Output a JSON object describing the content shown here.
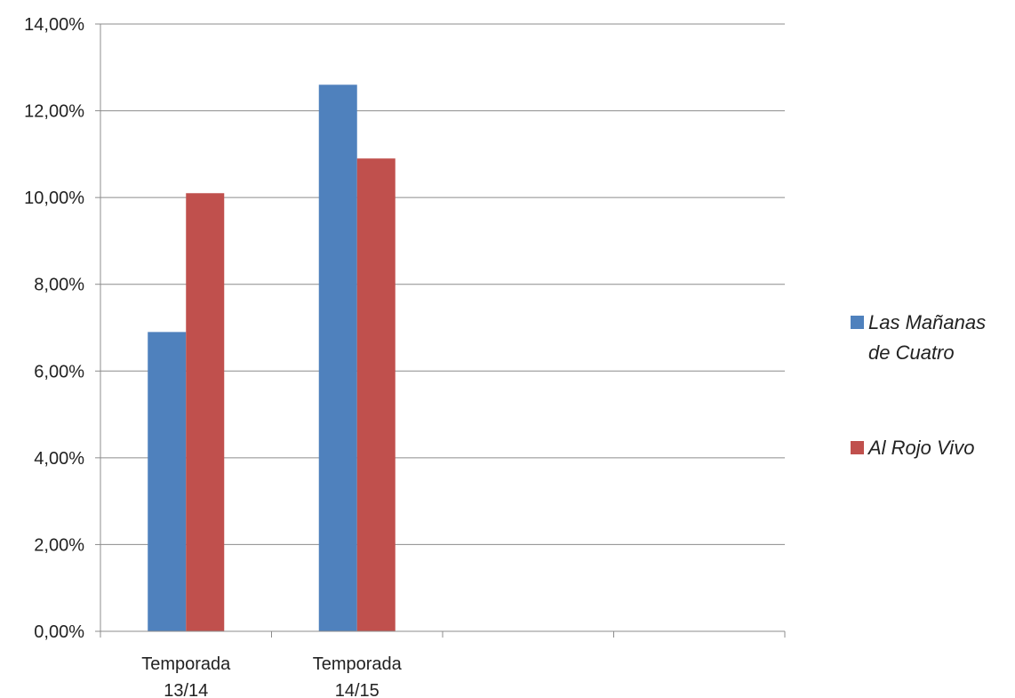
{
  "chart_data": {
    "type": "bar",
    "categories": [
      [
        "Temporada",
        "13/14"
      ],
      [
        "Temporada",
        "14/15"
      ],
      [
        "",
        ""
      ],
      [
        "",
        ""
      ]
    ],
    "series": [
      {
        "name": "Las Mañanas de Cuatro",
        "legend_lines": [
          "Las Mañanas",
          "de Cuatro"
        ],
        "color": "#4F81BD",
        "values": [
          6.9,
          12.6,
          null,
          null
        ]
      },
      {
        "name": "Al Rojo Vivo",
        "legend_lines": [
          "Al Rojo Vivo"
        ],
        "color": "#C0504D",
        "values": [
          10.1,
          10.9,
          null,
          null
        ]
      }
    ],
    "ylim": [
      0,
      14
    ],
    "yticks": [
      0,
      2,
      4,
      6,
      8,
      10,
      12,
      14
    ],
    "ytick_labels": [
      "0,00%",
      "2,00%",
      "4,00%",
      "6,00%",
      "8,00%",
      "10,00%",
      "12,00%",
      "14,00%"
    ],
    "grid": true,
    "legend_position": "right",
    "title": "",
    "xlabel": "",
    "ylabel": ""
  }
}
